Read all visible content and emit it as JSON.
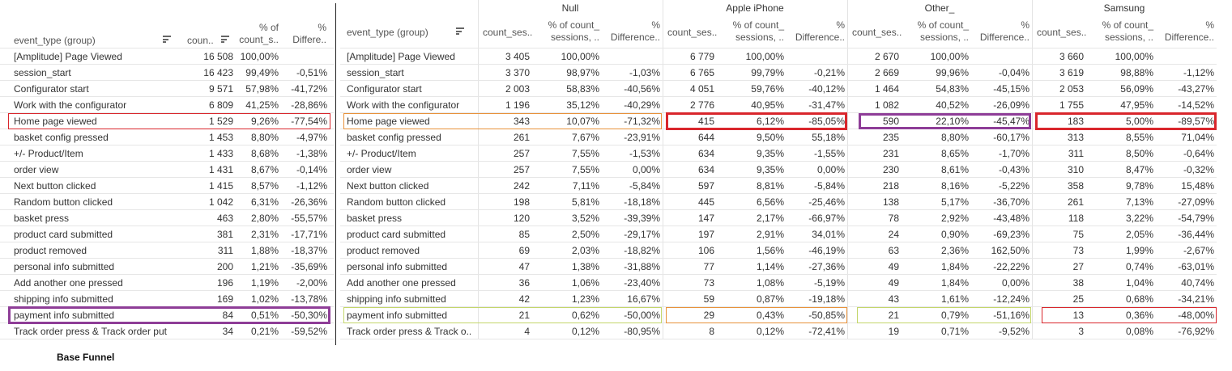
{
  "caption": "Base Funnel",
  "colors": {
    "red": "#d9262c",
    "purple": "#8e3d97",
    "orange": "#e8923a",
    "lime": "#c3d66a"
  },
  "base_table": {
    "headers": {
      "event_type": "event_type (group)",
      "count": "coun..",
      "pct_count_line1": "% of",
      "pct_count_line2": "count_s..",
      "pct_diff_line1": "%",
      "pct_diff_line2": "Differe.."
    },
    "rows": [
      {
        "event": "[Amplitude] Page Viewed",
        "count": "16 508",
        "pct": "100,00%",
        "diff": ""
      },
      {
        "event": "session_start",
        "count": "16 423",
        "pct": "99,49%",
        "diff": "-0,51%"
      },
      {
        "event": "Configurator start",
        "count": "9 571",
        "pct": "57,98%",
        "diff": "-41,72%"
      },
      {
        "event": "Work with the configurator",
        "count": "6 809",
        "pct": "41,25%",
        "diff": "-28,86%"
      },
      {
        "event": "Home page viewed",
        "count": "1 529",
        "pct": "9,26%",
        "diff": "-77,54%"
      },
      {
        "event": "basket config pressed",
        "count": "1 453",
        "pct": "8,80%",
        "diff": "-4,97%"
      },
      {
        "event": "+/- Product/Item",
        "count": "1 433",
        "pct": "8,68%",
        "diff": "-1,38%"
      },
      {
        "event": "order view",
        "count": "1 431",
        "pct": "8,67%",
        "diff": "-0,14%"
      },
      {
        "event": "Next button clicked",
        "count": "1 415",
        "pct": "8,57%",
        "diff": "-1,12%"
      },
      {
        "event": "Random button clicked",
        "count": "1 042",
        "pct": "6,31%",
        "diff": "-26,36%"
      },
      {
        "event": "basket press",
        "count": "463",
        "pct": "2,80%",
        "diff": "-55,57%"
      },
      {
        "event": "product card submitted",
        "count": "381",
        "pct": "2,31%",
        "diff": "-17,71%"
      },
      {
        "event": "product removed",
        "count": "311",
        "pct": "1,88%",
        "diff": "-18,37%"
      },
      {
        "event": "personal info submitted",
        "count": "200",
        "pct": "1,21%",
        "diff": "-35,69%"
      },
      {
        "event": "Add another one pressed",
        "count": "196",
        "pct": "1,19%",
        "diff": "-2,00%"
      },
      {
        "event": "shipping info submitted",
        "count": "169",
        "pct": "1,02%",
        "diff": "-13,78%"
      },
      {
        "event": "payment info submitted",
        "count": "84",
        "pct": "0,51%",
        "diff": "-50,30%"
      },
      {
        "event": "Track order press & Track order put",
        "count": "34",
        "pct": "0,21%",
        "diff": "-59,52%"
      }
    ]
  },
  "device_table": {
    "event_header": "event_type (group)",
    "col_headers": {
      "count": "count_ses..",
      "pct_line1": "% of count_",
      "pct_line2": "sessions, ..",
      "diff_line1": "%",
      "diff_line2": "Difference.."
    },
    "groups": [
      "Null",
      "Apple iPhone",
      "Other_",
      "Samsung"
    ],
    "rows": [
      {
        "event": "[Amplitude] Page Viewed",
        "cells": [
          [
            "3 405",
            "100,00%",
            ""
          ],
          [
            "6 779",
            "100,00%",
            ""
          ],
          [
            "2 670",
            "100,00%",
            ""
          ],
          [
            "3 660",
            "100,00%",
            ""
          ]
        ]
      },
      {
        "event": "session_start",
        "cells": [
          [
            "3 370",
            "98,97%",
            "-1,03%"
          ],
          [
            "6 765",
            "99,79%",
            "-0,21%"
          ],
          [
            "2 669",
            "99,96%",
            "-0,04%"
          ],
          [
            "3 619",
            "98,88%",
            "-1,12%"
          ]
        ]
      },
      {
        "event": "Configurator start",
        "cells": [
          [
            "2 003",
            "58,83%",
            "-40,56%"
          ],
          [
            "4 051",
            "59,76%",
            "-40,12%"
          ],
          [
            "1 464",
            "54,83%",
            "-45,15%"
          ],
          [
            "2 053",
            "56,09%",
            "-43,27%"
          ]
        ]
      },
      {
        "event": "Work with the configurator",
        "cells": [
          [
            "1 196",
            "35,12%",
            "-40,29%"
          ],
          [
            "2 776",
            "40,95%",
            "-31,47%"
          ],
          [
            "1 082",
            "40,52%",
            "-26,09%"
          ],
          [
            "1 755",
            "47,95%",
            "-14,52%"
          ]
        ]
      },
      {
        "event": "Home page viewed",
        "cells": [
          [
            "343",
            "10,07%",
            "-71,32%"
          ],
          [
            "415",
            "6,12%",
            "-85,05%"
          ],
          [
            "590",
            "22,10%",
            "-45,47%"
          ],
          [
            "183",
            "5,00%",
            "-89,57%"
          ]
        ]
      },
      {
        "event": "basket config pressed",
        "cells": [
          [
            "261",
            "7,67%",
            "-23,91%"
          ],
          [
            "644",
            "9,50%",
            "55,18%"
          ],
          [
            "235",
            "8,80%",
            "-60,17%"
          ],
          [
            "313",
            "8,55%",
            "71,04%"
          ]
        ]
      },
      {
        "event": "+/- Product/Item",
        "cells": [
          [
            "257",
            "7,55%",
            "-1,53%"
          ],
          [
            "634",
            "9,35%",
            "-1,55%"
          ],
          [
            "231",
            "8,65%",
            "-1,70%"
          ],
          [
            "311",
            "8,50%",
            "-0,64%"
          ]
        ]
      },
      {
        "event": "order view",
        "cells": [
          [
            "257",
            "7,55%",
            "0,00%"
          ],
          [
            "634",
            "9,35%",
            "0,00%"
          ],
          [
            "230",
            "8,61%",
            "-0,43%"
          ],
          [
            "310",
            "8,47%",
            "-0,32%"
          ]
        ]
      },
      {
        "event": "Next button clicked",
        "cells": [
          [
            "242",
            "7,11%",
            "-5,84%"
          ],
          [
            "597",
            "8,81%",
            "-5,84%"
          ],
          [
            "218",
            "8,16%",
            "-5,22%"
          ],
          [
            "358",
            "9,78%",
            "15,48%"
          ]
        ]
      },
      {
        "event": "Random button clicked",
        "cells": [
          [
            "198",
            "5,81%",
            "-18,18%"
          ],
          [
            "445",
            "6,56%",
            "-25,46%"
          ],
          [
            "138",
            "5,17%",
            "-36,70%"
          ],
          [
            "261",
            "7,13%",
            "-27,09%"
          ]
        ]
      },
      {
        "event": "basket press",
        "cells": [
          [
            "120",
            "3,52%",
            "-39,39%"
          ],
          [
            "147",
            "2,17%",
            "-66,97%"
          ],
          [
            "78",
            "2,92%",
            "-43,48%"
          ],
          [
            "118",
            "3,22%",
            "-54,79%"
          ]
        ]
      },
      {
        "event": "product card submitted",
        "cells": [
          [
            "85",
            "2,50%",
            "-29,17%"
          ],
          [
            "197",
            "2,91%",
            "34,01%"
          ],
          [
            "24",
            "0,90%",
            "-69,23%"
          ],
          [
            "75",
            "2,05%",
            "-36,44%"
          ]
        ]
      },
      {
        "event": "product removed",
        "cells": [
          [
            "69",
            "2,03%",
            "-18,82%"
          ],
          [
            "106",
            "1,56%",
            "-46,19%"
          ],
          [
            "63",
            "2,36%",
            "162,50%"
          ],
          [
            "73",
            "1,99%",
            "-2,67%"
          ]
        ]
      },
      {
        "event": "personal info submitted",
        "cells": [
          [
            "47",
            "1,38%",
            "-31,88%"
          ],
          [
            "77",
            "1,14%",
            "-27,36%"
          ],
          [
            "49",
            "1,84%",
            "-22,22%"
          ],
          [
            "27",
            "0,74%",
            "-63,01%"
          ]
        ]
      },
      {
        "event": "Add another one pressed",
        "cells": [
          [
            "36",
            "1,06%",
            "-23,40%"
          ],
          [
            "73",
            "1,08%",
            "-5,19%"
          ],
          [
            "49",
            "1,84%",
            "0,00%"
          ],
          [
            "38",
            "1,04%",
            "40,74%"
          ]
        ]
      },
      {
        "event": "shipping info submitted",
        "cells": [
          [
            "42",
            "1,23%",
            "16,67%"
          ],
          [
            "59",
            "0,87%",
            "-19,18%"
          ],
          [
            "43",
            "1,61%",
            "-12,24%"
          ],
          [
            "25",
            "0,68%",
            "-34,21%"
          ]
        ]
      },
      {
        "event": "payment info submitted",
        "cells": [
          [
            "21",
            "0,62%",
            "-50,00%"
          ],
          [
            "29",
            "0,43%",
            "-50,85%"
          ],
          [
            "21",
            "0,79%",
            "-51,16%"
          ],
          [
            "13",
            "0,36%",
            "-48,00%"
          ]
        ]
      },
      {
        "event": "Track order press & Track o..",
        "cells": [
          [
            "4",
            "0,12%",
            "-80,95%"
          ],
          [
            "8",
            "0,12%",
            "-72,41%"
          ],
          [
            "19",
            "0,71%",
            "-9,52%"
          ],
          [
            "3",
            "0,08%",
            "-76,92%"
          ]
        ]
      }
    ]
  }
}
